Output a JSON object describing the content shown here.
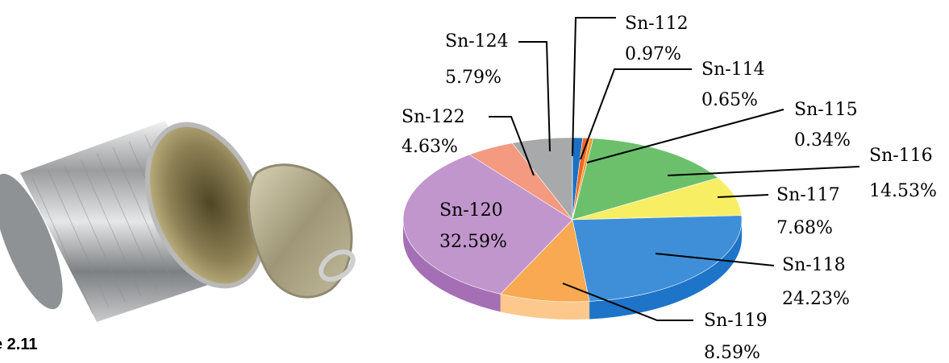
{
  "figure": {
    "caption": "e 2.11"
  },
  "chart_data": {
    "type": "pie",
    "title": "",
    "categories": [
      "Sn-112",
      "Sn-114",
      "Sn-115",
      "Sn-116",
      "Sn-117",
      "Sn-118",
      "Sn-119",
      "Sn-120",
      "Sn-122",
      "Sn-124"
    ],
    "values": [
      0.97,
      0.65,
      0.34,
      14.53,
      7.68,
      24.23,
      8.59,
      32.59,
      4.63,
      5.79
    ],
    "value_labels": [
      "0.97%",
      "0.65%",
      "0.34%",
      "14.53%",
      "7.68%",
      "24.23%",
      "8.59%",
      "32.59%",
      "4.63%",
      "5.79%"
    ],
    "colors": [
      "#1b6fc4",
      "#f26722",
      "#f49a2a",
      "#6cc06c",
      "#f8ee63",
      "#3f8fd8",
      "#f8a951",
      "#c196cc",
      "#f39a80",
      "#a8a9ab"
    ],
    "side_colors": [
      "#155ba3",
      "#cc5418",
      "#cc7f20",
      "#4f9d50",
      "#d6cd3f",
      "#1d74c8",
      "#fcc88c",
      "#a56fb5",
      "#d17a63",
      "#878889"
    ],
    "start_angle_deg": -90,
    "style": "3d-tilted",
    "labels": "callout-lines"
  }
}
